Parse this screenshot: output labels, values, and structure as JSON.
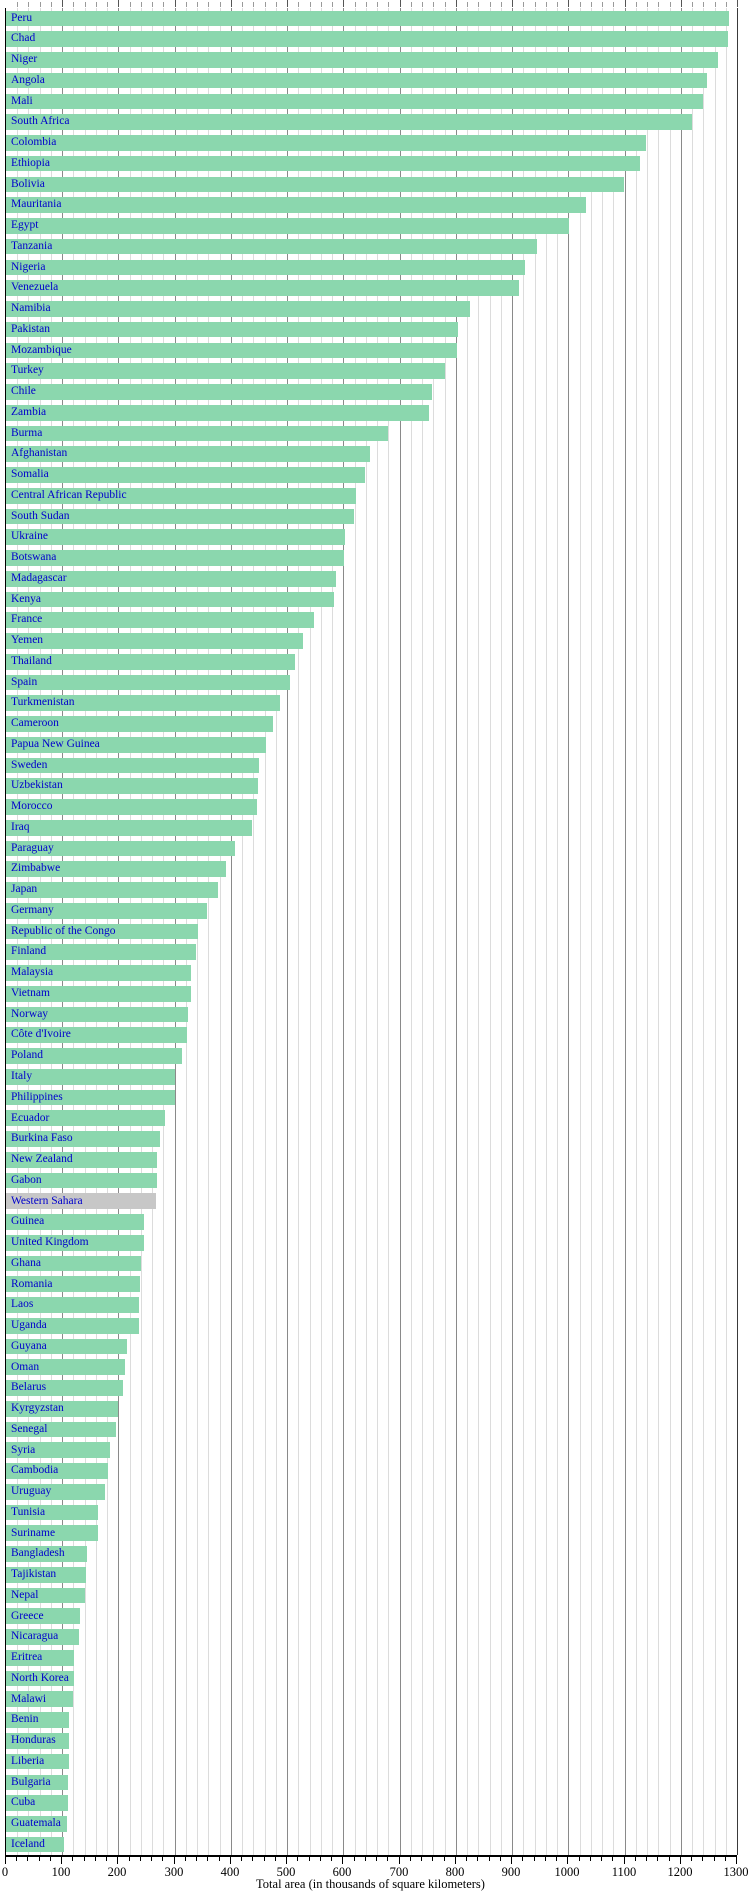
{
  "chart_data": {
    "type": "bar",
    "orientation": "horizontal",
    "title": "",
    "xlabel": "Total area (in thousands of square kilometers)",
    "xlim": [
      0,
      1300
    ],
    "x_major_step": 100,
    "x_minor_step": 20,
    "x_tick_labels": [
      "0",
      "100",
      "200",
      "300",
      "400",
      "500",
      "600",
      "700",
      "800",
      "900",
      "1000",
      "1100",
      "1200",
      "1300"
    ],
    "grid": true,
    "legend": false,
    "categories": [
      "Peru",
      "Chad",
      "Niger",
      "Angola",
      "Mali",
      "South Africa",
      "Colombia",
      "Ethiopia",
      "Bolivia",
      "Mauritania",
      "Egypt",
      "Tanzania",
      "Nigeria",
      "Venezuela",
      "Namibia",
      "Pakistan",
      "Mozambique",
      "Turkey",
      "Chile",
      "Zambia",
      "Burma",
      "Afghanistan",
      "Somalia",
      "Central African Republic",
      "South Sudan",
      "Ukraine",
      "Botswana",
      "Madagascar",
      "Kenya",
      "France",
      "Yemen",
      "Thailand",
      "Spain",
      "Turkmenistan",
      "Cameroon",
      "Papua New Guinea",
      "Sweden",
      "Uzbekistan",
      "Morocco",
      "Iraq",
      "Paraguay",
      "Zimbabwe",
      "Japan",
      "Germany",
      "Republic of the Congo",
      "Finland",
      "Malaysia",
      "Vietnam",
      "Norway",
      "Côte d'Ivoire",
      "Poland",
      "Italy",
      "Philippines",
      "Ecuador",
      "Burkina Faso",
      "New Zealand",
      "Gabon",
      "Western Sahara",
      "Guinea",
      "United Kingdom",
      "Ghana",
      "Romania",
      "Laos",
      "Uganda",
      "Guyana",
      "Oman",
      "Belarus",
      "Kyrgyzstan",
      "Senegal",
      "Syria",
      "Cambodia",
      "Uruguay",
      "Tunisia",
      "Suriname",
      "Bangladesh",
      "Tajikistan",
      "Nepal",
      "Greece",
      "Nicaragua",
      "Eritrea",
      "North Korea",
      "Malawi",
      "Benin",
      "Honduras",
      "Liberia",
      "Bulgaria",
      "Cuba",
      "Guatemala",
      "Iceland"
    ],
    "values": [
      1285.2,
      1284.0,
      1267.0,
      1246.7,
      1240.0,
      1219.9,
      1138.9,
      1127.1,
      1098.6,
      1030.7,
      1001.5,
      945.1,
      923.8,
      912.1,
      825.4,
      803.9,
      801.6,
      780.6,
      757.0,
      752.6,
      678.5,
      647.5,
      637.7,
      623.0,
      619.7,
      603.7,
      600.4,
      587.0,
      582.7,
      547.0,
      528.0,
      514.0,
      504.8,
      488.1,
      475.4,
      462.8,
      450.0,
      447.4,
      446.6,
      437.1,
      406.8,
      390.6,
      377.8,
      357.0,
      342.0,
      338.1,
      329.8,
      329.6,
      324.2,
      322.5,
      312.7,
      301.2,
      300.0,
      283.6,
      274.2,
      268.7,
      267.7,
      266.0,
      245.9,
      244.8,
      239.5,
      237.5,
      236.8,
      236.0,
      215.0,
      212.5,
      207.6,
      198.5,
      196.2,
      185.2,
      181.0,
      176.2,
      163.6,
      163.3,
      144.0,
      143.1,
      140.8,
      131.9,
      129.5,
      121.3,
      120.5,
      118.5,
      112.6,
      112.1,
      111.4,
      110.9,
      110.9,
      108.9,
      103.0
    ],
    "highlighted_category": "Western Sahara",
    "colors": {
      "bar": "#8bd7ae",
      "highlight_bar": "#c7c7c7",
      "label_text": "#0000cc",
      "axis": "#000000",
      "grid_minor": "#dcdcdc",
      "grid_major": "#8a8a8a",
      "tick_label": "#000000"
    }
  }
}
